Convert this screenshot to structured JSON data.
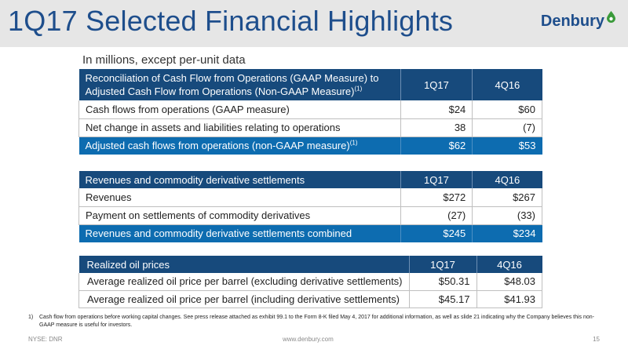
{
  "slide": {
    "title": "1Q17 Selected Financial Highlights",
    "logo_text": "Denbury",
    "subtitle": "In millions, except per-unit data"
  },
  "tables": [
    {
      "header": {
        "label": "Reconciliation of Cash Flow from Operations (GAAP Measure) to Adjusted Cash Flow from Operations (Non-GAAP Measure)",
        "label_sup": "(1)",
        "col1": "1Q17",
        "col2": "4Q16"
      },
      "rows": [
        {
          "label": "Cash flows from operations (GAAP measure)",
          "v1": "$24",
          "v2": "$60"
        },
        {
          "label": "Net change in assets and liabilities relating to operations",
          "v1": "38",
          "v2": "(7)"
        }
      ],
      "total": {
        "label": "Adjusted cash flows from operations (non-GAAP measure)",
        "label_sup": "(1)",
        "v1": "$62",
        "v2": "$53"
      }
    },
    {
      "header": {
        "label": "Revenues and commodity derivative settlements",
        "col1": "1Q17",
        "col2": "4Q16"
      },
      "rows": [
        {
          "label": "Revenues",
          "v1": "$272",
          "v2": "$267"
        },
        {
          "label": "Payment on settlements of commodity derivatives",
          "v1": "(27)",
          "v2": "(33)"
        }
      ],
      "total": {
        "label": "Revenues and commodity derivative settlements combined",
        "v1": "$245",
        "v2": "$234"
      }
    },
    {
      "header": {
        "label": "Realized oil prices",
        "col1": "1Q17",
        "col2": "4Q16"
      },
      "rows": [
        {
          "label": "Average realized oil price per barrel (excluding derivative settlements)",
          "v1": "$50.31",
          "v2": "$48.03"
        },
        {
          "label": "Average realized oil price per barrel (including derivative settlements)",
          "v1": "$45.17",
          "v2": "$41.93"
        }
      ]
    }
  ],
  "footnote": {
    "number": "1)",
    "text": "Cash flow from operations before working capital changes.  See press release attached as exhibit 99.1 to the Form 8-K filed May 4, 2017 for additional information, as well as slide 21 indicating why the Company believes this non-GAAP measure is useful for investors."
  },
  "footer": {
    "ticker": "NYSE: DNR",
    "website": "www.denbury.com",
    "page_number": "15"
  },
  "colors": {
    "header_blue": "#174a7c",
    "total_blue": "#0d6cb0",
    "title_blue": "#1e4e8c",
    "logo_green": "#3a9a3a"
  },
  "icons": {
    "logo_mark": "green-drop-icon"
  }
}
